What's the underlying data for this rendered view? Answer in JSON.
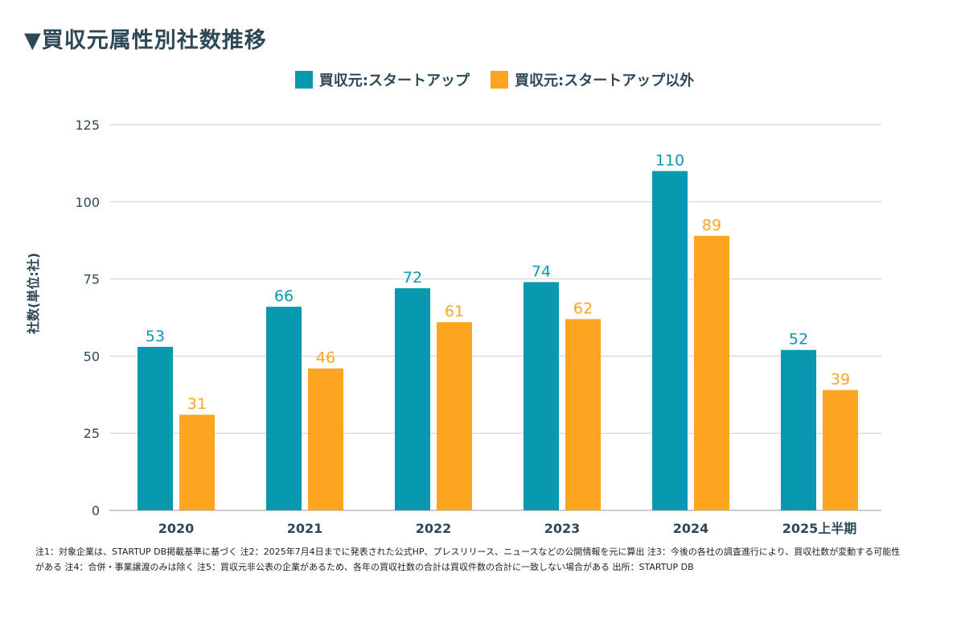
{
  "title": "▼買収元属性別社数推移",
  "chart_data": {
    "type": "bar",
    "title": "▼買収元属性別社数推移",
    "xlabel": "",
    "ylabel": "社数(単位:社)",
    "ylim": [
      0,
      125
    ],
    "yticks": [
      0,
      25,
      50,
      75,
      100,
      125
    ],
    "grid": true,
    "legend_position": "top-center",
    "categories": [
      "2020",
      "2021",
      "2022",
      "2023",
      "2024",
      "2025上半期"
    ],
    "series": [
      {
        "name": "買収元:スタートアップ",
        "color": "#0899b0",
        "values": [
          53,
          66,
          72,
          74,
          110,
          52
        ]
      },
      {
        "name": "買収元:スタートアップ以外",
        "color": "#fda521",
        "values": [
          31,
          46,
          61,
          62,
          89,
          39
        ]
      }
    ]
  },
  "notes": "注1：対象企業は、STARTUP DB掲載基準に基づく 注2：2025年7月4日までに発表された公式HP、プレスリリース、ニュースなどの公開情報を元に算出 注3：今後の各社の調査進行により、買収社数が変動する可能性がある 注4：合併・事業譲渡のみは除く 注5：買収元非公表の企業があるため、各年の買収社数の合計は買収件数の合計に一致しない場合がある 出所：STARTUP DB"
}
